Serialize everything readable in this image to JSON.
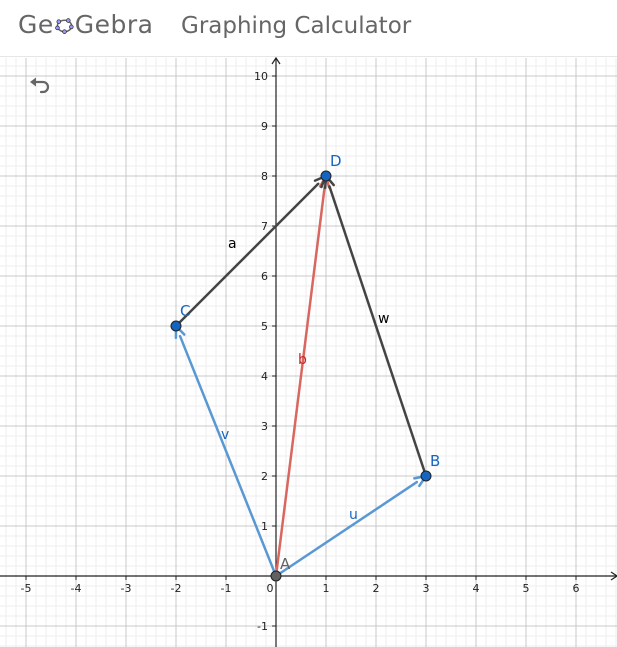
{
  "header": {
    "logo_left": "Ge",
    "logo_right": "Gebra",
    "app_title": "Graphing Calculator"
  },
  "toolbar": {
    "undo_icon": "undo-icon"
  },
  "graph": {
    "x_ticks": [
      "-5",
      "-4",
      "-3",
      "-2",
      "-1",
      "0",
      "1",
      "2",
      "3",
      "4",
      "5",
      "6"
    ],
    "y_ticks": [
      "-1",
      "1",
      "2",
      "3",
      "4",
      "5",
      "6",
      "7",
      "8",
      "9",
      "10"
    ],
    "points": [
      {
        "name": "A",
        "x": 0,
        "y": 0,
        "color": "#616161"
      },
      {
        "name": "B",
        "x": 3,
        "y": 2,
        "color": "#1565c0"
      },
      {
        "name": "C",
        "x": -2,
        "y": 5,
        "color": "#1565c0"
      },
      {
        "name": "D",
        "x": 1,
        "y": 8,
        "color": "#1565c0"
      }
    ],
    "vectors": [
      {
        "name": "u",
        "from": "A",
        "to": "B",
        "color": "#5a98d4",
        "label_color": "#1565c0"
      },
      {
        "name": "v",
        "from": "A",
        "to": "C",
        "color": "#5a98d4",
        "label_color": "#1565c0"
      },
      {
        "name": "b",
        "from": "A",
        "to": "D",
        "color": "#d9665f",
        "label_color": "#c62828"
      },
      {
        "name": "a",
        "from": "C",
        "to": "D",
        "color": "#444444",
        "label_color": "#000000"
      },
      {
        "name": "w",
        "from": "B",
        "to": "D",
        "color": "#444444",
        "label_color": "#000000"
      }
    ]
  }
}
